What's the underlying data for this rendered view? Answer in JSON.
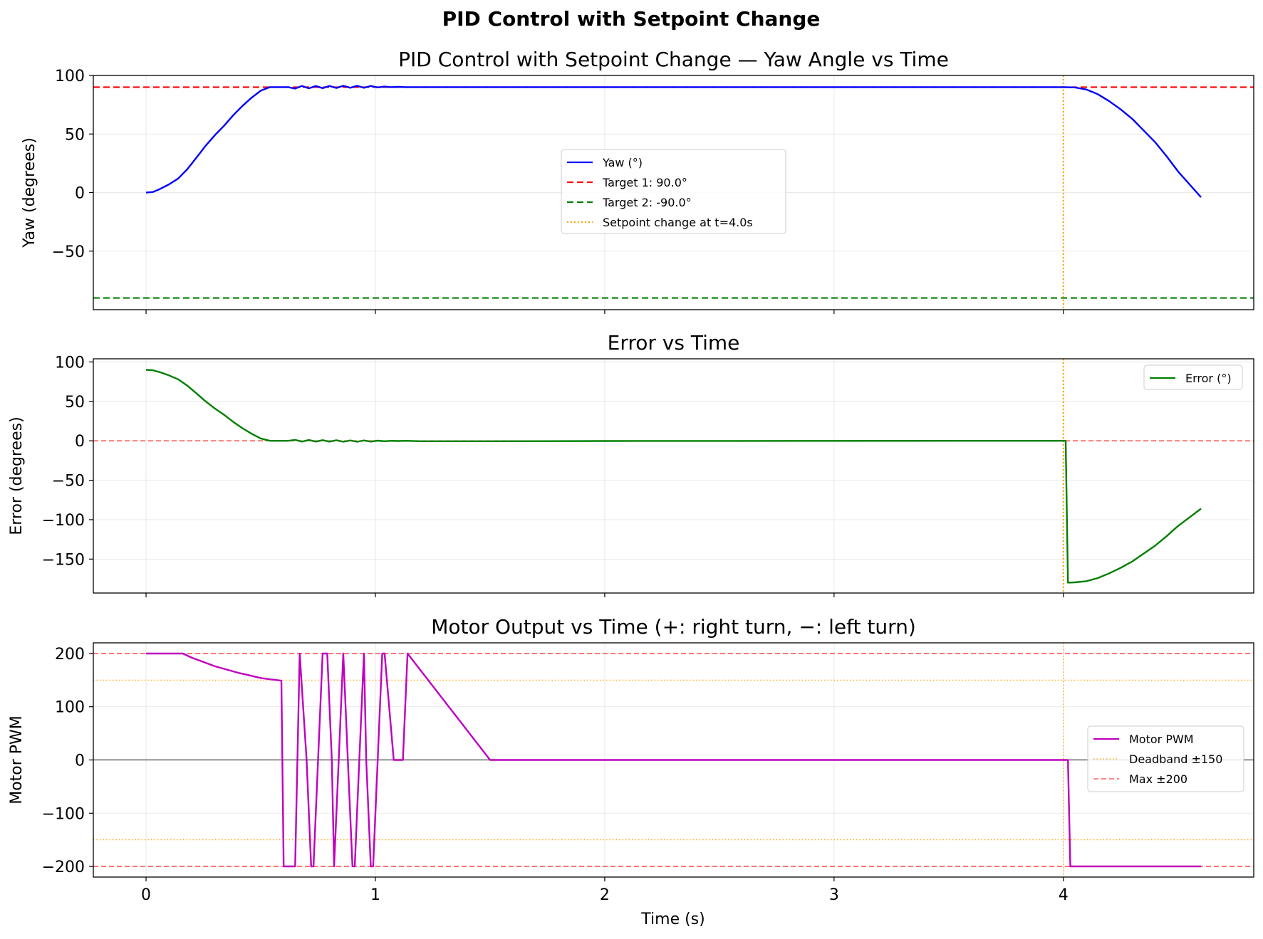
{
  "figure": {
    "suptitle": "PID Control with Setpoint Change",
    "xlabel": "Time (s)"
  },
  "chart_data": [
    {
      "type": "line",
      "title": "PID Control with Setpoint Change — Yaw Angle vs Time",
      "xlabel": "Time (s)",
      "ylabel": "Yaw (degrees)",
      "xlim": [
        -0.23,
        4.83
      ],
      "ylim": [
        -100,
        100
      ],
      "xticks": [
        0,
        1,
        2,
        3,
        4
      ],
      "yticks": [
        100,
        50,
        0,
        -50
      ],
      "ytick_labels": [
        "100",
        "50",
        "0",
        "−50"
      ],
      "grid": true,
      "legend_position": "center",
      "series": [
        {
          "name": "Yaw (°)",
          "color": "#0000ff",
          "style": "solid",
          "x": [
            0,
            0.03,
            0.06,
            0.1,
            0.14,
            0.18,
            0.22,
            0.26,
            0.3,
            0.34,
            0.38,
            0.42,
            0.46,
            0.5,
            0.54,
            0.58,
            0.62,
            0.65,
            0.68,
            0.71,
            0.74,
            0.77,
            0.8,
            0.83,
            0.86,
            0.89,
            0.92,
            0.95,
            0.98,
            1.01,
            1.04,
            1.07,
            1.1,
            1.13,
            1.2,
            1.5,
            2,
            2.5,
            3,
            3.5,
            4,
            4.05,
            4.1,
            4.15,
            4.2,
            4.25,
            4.3,
            4.35,
            4.4,
            4.45,
            4.5,
            4.55,
            4.6
          ],
          "y": [
            0,
            0.5,
            3,
            7,
            12,
            20,
            30,
            40,
            49,
            57,
            66,
            74,
            81,
            87,
            90,
            90,
            90,
            88.8,
            91,
            89,
            91,
            89.2,
            91,
            89.3,
            91.2,
            89.5,
            91.2,
            89.5,
            91,
            89.8,
            90.5,
            90,
            90.3,
            90,
            90,
            90,
            90,
            90,
            90,
            90,
            90,
            89.8,
            88,
            84,
            78,
            71,
            63,
            53,
            43,
            31,
            18,
            7,
            -4
          ]
        },
        {
          "name": "Target 1: 90.0°",
          "color": "#ff0000",
          "style": "dashed",
          "y_const": 90
        },
        {
          "name": "Target 2: -90.0°",
          "color": "#008000",
          "style": "dashed",
          "y_const": -90
        },
        {
          "name": "Setpoint change at t=4.0s",
          "color": "#ffa500",
          "style": "dotted",
          "x_const": 4.0
        }
      ]
    },
    {
      "type": "line",
      "title": "Error vs Time",
      "xlabel": "Time (s)",
      "ylabel": "Error (degrees)",
      "xlim": [
        -0.23,
        4.83
      ],
      "ylim": [
        -193,
        104
      ],
      "xticks": [
        0,
        1,
        2,
        3,
        4
      ],
      "yticks": [
        100,
        50,
        0,
        -50,
        -100,
        -150
      ],
      "ytick_labels": [
        "100",
        "50",
        "0",
        "−50",
        "−100",
        "−150"
      ],
      "grid": true,
      "legend_position": "upper right",
      "series": [
        {
          "name": "Error (°)",
          "color": "#008000",
          "style": "solid",
          "x": [
            0,
            0.03,
            0.06,
            0.1,
            0.14,
            0.18,
            0.22,
            0.26,
            0.3,
            0.34,
            0.38,
            0.42,
            0.46,
            0.5,
            0.54,
            0.58,
            0.62,
            0.65,
            0.68,
            0.71,
            0.74,
            0.77,
            0.8,
            0.83,
            0.86,
            0.89,
            0.92,
            0.95,
            0.98,
            1.01,
            1.04,
            1.07,
            1.1,
            1.13,
            1.2,
            1.5,
            2,
            2.5,
            3,
            3.5,
            3.98,
            4.01,
            4.02,
            4.05,
            4.1,
            4.15,
            4.2,
            4.25,
            4.3,
            4.35,
            4.4,
            4.45,
            4.5,
            4.55,
            4.6
          ],
          "y": [
            90,
            89.5,
            87,
            83,
            78,
            70,
            60,
            50,
            41,
            33,
            24,
            16,
            9,
            3,
            0,
            0,
            0,
            1.2,
            -1,
            1,
            -1,
            0.8,
            -1,
            0.7,
            -1.2,
            0.5,
            -1.2,
            0.5,
            -1,
            0.2,
            -0.5,
            0,
            -0.3,
            0,
            -0.5,
            -0.5,
            -0.3,
            -0.2,
            -0.1,
            0,
            0,
            0,
            -179.8,
            -179.5,
            -178,
            -174,
            -168,
            -161,
            -153,
            -143,
            -133,
            -121,
            -108,
            -97,
            -86
          ]
        },
        {
          "name": "",
          "color": "#ff0000",
          "style": "dashed",
          "y_const": 0
        },
        {
          "name": "",
          "color": "#ffa500",
          "style": "dotted",
          "x_const": 4.0
        }
      ]
    },
    {
      "type": "line",
      "title": "Motor Output vs Time  (+: right turn, −: left turn)",
      "xlabel": "Time (s)",
      "ylabel": "Motor PWM",
      "xlim": [
        -0.23,
        4.83
      ],
      "ylim": [
        -220,
        220
      ],
      "xticks": [
        0,
        1,
        2,
        3,
        4
      ],
      "xtick_labels": [
        "0",
        "1",
        "2",
        "3",
        "4"
      ],
      "yticks": [
        200,
        100,
        0,
        -100,
        -200
      ],
      "ytick_labels": [
        "200",
        "100",
        "0",
        "−100",
        "−200"
      ],
      "grid": true,
      "legend_position": "center right",
      "series": [
        {
          "name": "Motor PWM",
          "color": "#bf00bf",
          "style": "solid",
          "x": [
            0,
            0.05,
            0.1,
            0.16,
            0.2,
            0.25,
            0.3,
            0.35,
            0.4,
            0.45,
            0.5,
            0.55,
            0.59,
            0.6,
            0.62,
            0.65,
            0.66,
            0.67,
            0.7,
            0.72,
            0.73,
            0.75,
            0.77,
            0.79,
            0.81,
            0.82,
            0.84,
            0.86,
            0.88,
            0.9,
            0.91,
            0.93,
            0.95,
            0.96,
            0.98,
            0.99,
            1.01,
            1.03,
            1.04,
            1.05,
            1.08,
            1.11,
            1.12,
            1.14,
            1.5,
            2,
            2.5,
            3,
            3.5,
            4.0,
            4.02,
            4.03,
            4.1,
            4.3,
            4.6
          ],
          "y": [
            200,
            200,
            200,
            200,
            192,
            184,
            176,
            170,
            164,
            159,
            154,
            151,
            149,
            -200,
            -200,
            -200,
            0,
            200,
            0,
            -200,
            -200,
            0,
            200,
            200,
            0,
            -200,
            0,
            200,
            0,
            -200,
            -200,
            0,
            200,
            0,
            -200,
            -200,
            0,
            200,
            200,
            150,
            0,
            0,
            0,
            200,
            0,
            0,
            0,
            0,
            0,
            0,
            0,
            -200,
            -200,
            -200,
            -200
          ]
        },
        {
          "name": "Deadband ±150",
          "color": "#ffa500",
          "style": "dotted",
          "y_const": [
            150,
            -150
          ]
        },
        {
          "name": "Max ±200",
          "color": "#ff0000",
          "style": "dashed",
          "y_const": [
            200,
            -200
          ]
        },
        {
          "name": "",
          "color": "#000000",
          "style": "solid",
          "y_const": 0
        },
        {
          "name": "",
          "color": "#ffa500",
          "style": "dotted",
          "x_const": 4.0
        }
      ]
    }
  ]
}
